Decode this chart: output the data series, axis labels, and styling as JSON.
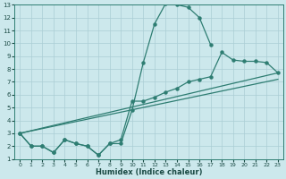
{
  "xlabel": "Humidex (Indice chaleur)",
  "bg_color": "#cce8ec",
  "grid_color": "#aacdd4",
  "line_color": "#2e7d72",
  "xlim": [
    -0.5,
    23.5
  ],
  "ylim": [
    1,
    13
  ],
  "xticks": [
    0,
    1,
    2,
    3,
    4,
    5,
    6,
    7,
    8,
    9,
    10,
    11,
    12,
    13,
    14,
    15,
    16,
    17,
    18,
    19,
    20,
    21,
    22,
    23
  ],
  "yticks": [
    1,
    2,
    3,
    4,
    5,
    6,
    7,
    8,
    9,
    10,
    11,
    12,
    13
  ],
  "line1_x": [
    0,
    1,
    2,
    3,
    4,
    5,
    6,
    7,
    8,
    9,
    10,
    11,
    12,
    13,
    14,
    15,
    16,
    17
  ],
  "line1_y": [
    3,
    2,
    2,
    1.5,
    2.5,
    2.2,
    2.0,
    1.3,
    2.2,
    2.2,
    4.8,
    8.5,
    11.5,
    13.1,
    13.0,
    12.8,
    12.0,
    9.9
  ],
  "line2_x": [
    0,
    1,
    2,
    3,
    4,
    5,
    6,
    7,
    8,
    9,
    10,
    11,
    12,
    13,
    14,
    15,
    16,
    17,
    18,
    19,
    20,
    21,
    22,
    23
  ],
  "line2_y": [
    3,
    2,
    2,
    1.5,
    2.5,
    2.2,
    2.0,
    1.3,
    2.2,
    2.5,
    5.5,
    5.5,
    5.8,
    6.2,
    6.5,
    7.0,
    7.2,
    7.4,
    9.3,
    8.7,
    8.6,
    8.6,
    8.5,
    7.7
  ],
  "line3_x": [
    0,
    23
  ],
  "line3_y": [
    3,
    7.7
  ],
  "line4_x": [
    0,
    23
  ],
  "line4_y": [
    3,
    7.2
  ]
}
